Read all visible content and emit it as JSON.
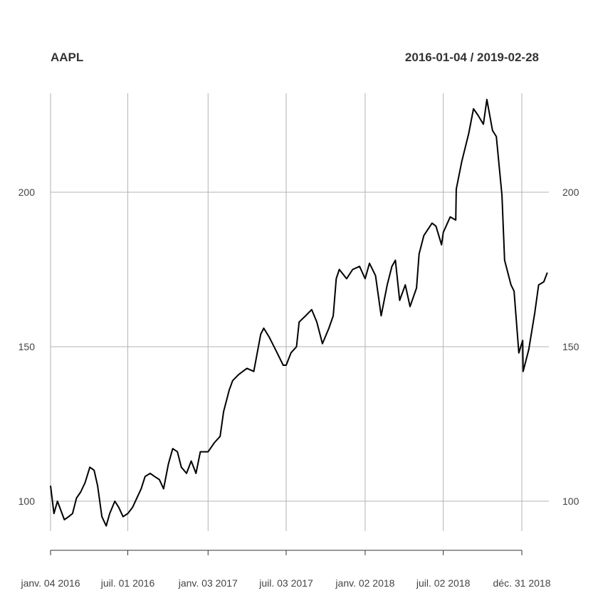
{
  "chart_data": {
    "type": "line",
    "title": "AAPL",
    "subtitle": "2016-01-04 / 2019-02-28",
    "date_range": [
      "2016-01-04",
      "2019-02-28"
    ],
    "ylim": [
      90,
      232
    ],
    "y_ticks": [
      100,
      150,
      200
    ],
    "y_tick_labels": [
      "100",
      "150",
      "200"
    ],
    "x_ticks": [
      "2016-01-04",
      "2016-07-01",
      "2017-01-03",
      "2017-07-03",
      "2018-01-02",
      "2018-07-02",
      "2018-12-31"
    ],
    "x_tick_labels": [
      "janv. 04 2016",
      "juil. 01 2016",
      "janv. 03 2017",
      "juil. 03 2017",
      "janv. 02 2018",
      "juil. 02 2018",
      "déc. 31 2018"
    ],
    "grid": true,
    "series": [
      {
        "color": "#000000",
        "x": [
          "2016-01-04",
          "2016-01-12",
          "2016-01-20",
          "2016-01-28",
          "2016-02-05",
          "2016-02-15",
          "2016-02-24",
          "2016-03-04",
          "2016-03-14",
          "2016-03-24",
          "2016-04-04",
          "2016-04-14",
          "2016-04-22",
          "2016-05-02",
          "2016-05-12",
          "2016-05-20",
          "2016-06-01",
          "2016-06-10",
          "2016-06-20",
          "2016-07-01",
          "2016-07-12",
          "2016-07-22",
          "2016-08-01",
          "2016-08-10",
          "2016-08-22",
          "2016-09-01",
          "2016-09-12",
          "2016-09-22",
          "2016-10-03",
          "2016-10-13",
          "2016-10-24",
          "2016-11-02",
          "2016-11-14",
          "2016-11-25",
          "2016-12-06",
          "2016-12-16",
          "2017-01-03",
          "2017-01-18",
          "2017-01-31",
          "2017-02-08",
          "2017-02-21",
          "2017-03-01",
          "2017-03-15",
          "2017-04-03",
          "2017-04-19",
          "2017-05-05",
          "2017-05-12",
          "2017-05-25",
          "2017-06-12",
          "2017-06-26",
          "2017-07-03",
          "2017-07-14",
          "2017-07-27",
          "2017-08-02",
          "2017-08-17",
          "2017-08-31",
          "2017-09-12",
          "2017-09-25",
          "2017-10-10",
          "2017-10-20",
          "2017-10-27",
          "2017-11-03",
          "2017-11-20",
          "2017-12-04",
          "2017-12-20",
          "2018-01-02",
          "2018-01-12",
          "2018-01-26",
          "2018-02-08",
          "2018-02-22",
          "2018-03-05",
          "2018-03-13",
          "2018-03-23",
          "2018-04-05",
          "2018-04-16",
          "2018-05-01",
          "2018-05-07",
          "2018-05-18",
          "2018-06-06",
          "2018-06-15",
          "2018-06-28",
          "2018-07-02",
          "2018-07-18",
          "2018-07-31",
          "2018-08-01",
          "2018-08-14",
          "2018-08-30",
          "2018-09-10",
          "2018-09-20",
          "2018-10-03",
          "2018-10-11",
          "2018-10-24",
          "2018-11-02",
          "2018-11-15",
          "2018-11-21",
          "2018-12-06",
          "2018-12-13",
          "2018-12-24",
          "2019-01-02",
          "2019-01-03",
          "2019-01-16",
          "2019-01-30",
          "2019-02-08",
          "2019-02-20",
          "2019-02-28"
        ],
        "values": [
          105,
          96,
          100,
          97,
          94,
          95,
          96,
          101,
          103,
          106,
          111,
          110,
          105,
          95,
          92,
          96,
          100,
          98,
          95,
          96,
          98,
          101,
          104,
          108,
          109,
          108,
          107,
          104,
          112,
          117,
          116,
          111,
          109,
          113,
          109,
          116,
          116,
          119,
          121,
          129,
          136,
          139,
          141,
          143,
          142,
          154,
          156,
          153,
          148,
          144,
          144,
          148,
          150,
          158,
          160,
          162,
          158,
          151,
          156,
          160,
          172,
          175,
          172,
          175,
          176,
          172,
          177,
          173,
          160,
          170,
          176,
          178,
          165,
          170,
          163,
          169,
          180,
          186,
          190,
          189,
          183,
          187,
          192,
          191,
          201,
          210,
          219,
          227,
          225,
          222,
          230,
          220,
          218,
          199,
          178,
          170,
          168,
          148,
          152,
          142,
          149,
          161,
          170,
          171,
          174
        ]
      }
    ]
  }
}
